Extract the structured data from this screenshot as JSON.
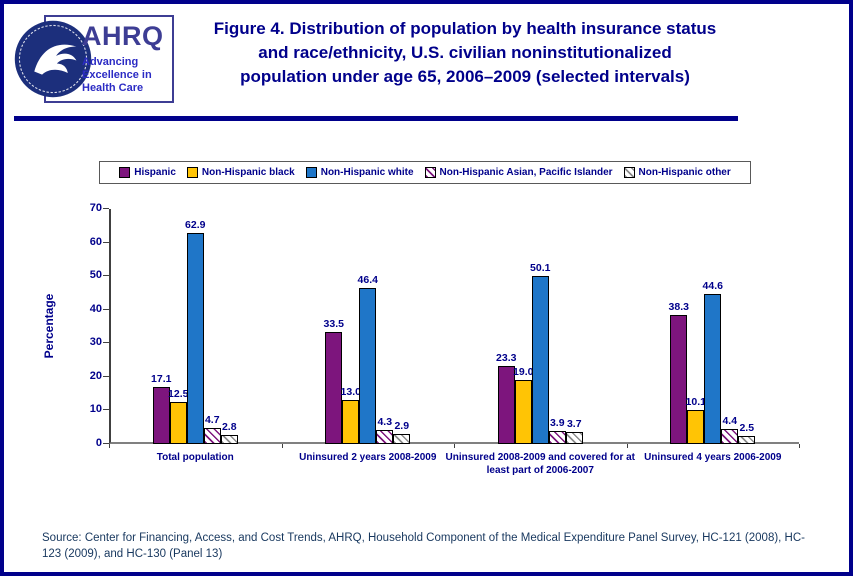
{
  "header": {
    "logo": {
      "org": "AHRQ",
      "taglines": [
        "Advancing",
        "Excellence in",
        "Health Care"
      ]
    },
    "title_lines": [
      "Figure 4. Distribution of population by health insurance status",
      "and race/ethnicity, U.S. civilian noninstitutionalized",
      "population under age 65, 2006–2009 (selected intervals)"
    ]
  },
  "chart_data": {
    "type": "bar",
    "title": "",
    "ylabel": "Percentage",
    "xlabel": "",
    "ylim": [
      0,
      70
    ],
    "yticks": [
      0,
      10,
      20,
      30,
      40,
      50,
      60,
      70
    ],
    "grid": false,
    "legend_position": "top",
    "categories": [
      "Total population",
      "Uninsured 2 years 2008-2009",
      "Uninsured 2008-2009 and covered for at least part of 2006-2007",
      "Uninsured 4 years 2006-2009"
    ],
    "series": [
      {
        "name": "Hispanic",
        "color": "#7D157D",
        "values": [
          17.1,
          33.5,
          23.3,
          38.3
        ],
        "labels": [
          "17.1",
          "33.5",
          "23.3",
          "38.3"
        ]
      },
      {
        "name": "Non-Hispanic black",
        "color": "#FFC405",
        "values": [
          12.5,
          13.0,
          19.0,
          10.1
        ],
        "labels": [
          "12.5",
          "13.0",
          "19.0",
          "10.1"
        ]
      },
      {
        "name": "Non-Hispanic white",
        "color": "#1F76C8",
        "values": [
          62.9,
          46.4,
          50.1,
          44.6
        ],
        "labels": [
          "62.9",
          "46.4",
          "50.1",
          "44.6"
        ]
      },
      {
        "name": "Non-Hispanic Asian, Pacific Islander",
        "color": "#7D157D",
        "pattern": "diagonal",
        "values": [
          4.7,
          4.3,
          3.9,
          4.4
        ],
        "labels": [
          "4.7",
          "4.3",
          "3.9",
          "4.4"
        ]
      },
      {
        "name": "Non-Hispanic other",
        "color": "#8C8C8C",
        "pattern": "diagonal",
        "values": [
          2.8,
          2.9,
          3.7,
          2.5
        ],
        "labels": [
          "2.8",
          "2.9",
          "3.7",
          "2.5"
        ]
      }
    ]
  },
  "source": {
    "text": "Source: Center for Financing, Access, and Cost Trends, AHRQ, Household Component of the Medical Expenditure Panel Survey, HC-121 (2008), HC-123 (2009), and HC-130 (Panel 13)"
  },
  "colors": {
    "navy": "#00008B",
    "rule": "#00008B"
  }
}
